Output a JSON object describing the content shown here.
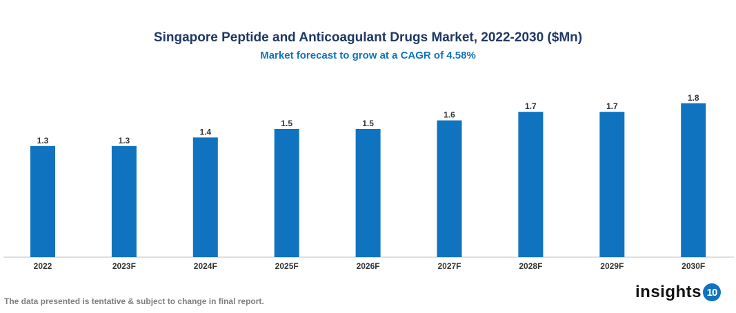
{
  "chart_data": {
    "type": "bar",
    "title": "Singapore Peptide and Anticoagulant Drugs Market, 2022-2030 ($Mn)",
    "subtitle": "Market forecast to grow at a CAGR of 4.58%",
    "categories": [
      "2022",
      "2023F",
      "2024F",
      "2025F",
      "2026F",
      "2027F",
      "2028F",
      "2029F",
      "2030F"
    ],
    "values": [
      1.3,
      1.3,
      1.4,
      1.5,
      1.5,
      1.6,
      1.7,
      1.7,
      1.8
    ],
    "data_labels": [
      "1.3",
      "1.3",
      "1.4",
      "1.5",
      "1.5",
      "1.6",
      "1.7",
      "1.7",
      "1.8"
    ],
    "xlabel": "",
    "ylabel": "",
    "ylim": [
      0,
      1.8
    ],
    "grid": false,
    "legend": "none",
    "bar_color": "#1073bf"
  },
  "footer": {
    "note": "The data presented is tentative & subject to change in final report.",
    "logo_text": "insights",
    "logo_badge": "10"
  }
}
